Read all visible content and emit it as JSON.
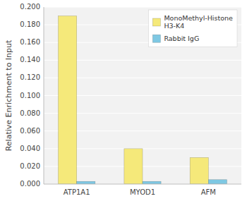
{
  "chart_data": {
    "type": "bar",
    "categories": [
      "ATP1A1",
      "MYOD1",
      "AFM"
    ],
    "series": [
      {
        "name": "MonoMethyl-Histone\nH3-K4",
        "color": "#F5E97A",
        "values": [
          0.19,
          0.04,
          0.03
        ]
      },
      {
        "name": "Rabbit IgG",
        "color": "#7EC8E3",
        "values": [
          0.003,
          0.003,
          0.005
        ]
      }
    ],
    "ylabel": "Relative Enrichment to Input",
    "ylim": [
      0.0,
      0.2
    ],
    "yticks": [
      {
        "value": 0.0,
        "label": "0.000"
      },
      {
        "value": 0.02,
        "label": "0.020"
      },
      {
        "value": 0.04,
        "label": "0.040"
      },
      {
        "value": 0.06,
        "label": "0.060"
      },
      {
        "value": 0.08,
        "label": "0.080"
      },
      {
        "value": 0.1,
        "label": "0.100"
      },
      {
        "value": 0.12,
        "label": "0.120"
      },
      {
        "value": 0.14,
        "label": "0.140"
      },
      {
        "value": 0.16,
        "label": "0.160"
      },
      {
        "value": 0.18,
        "label": "0.180"
      },
      {
        "value": 0.2,
        "label": "0.200"
      }
    ],
    "grid": true,
    "legend": "upper right"
  }
}
